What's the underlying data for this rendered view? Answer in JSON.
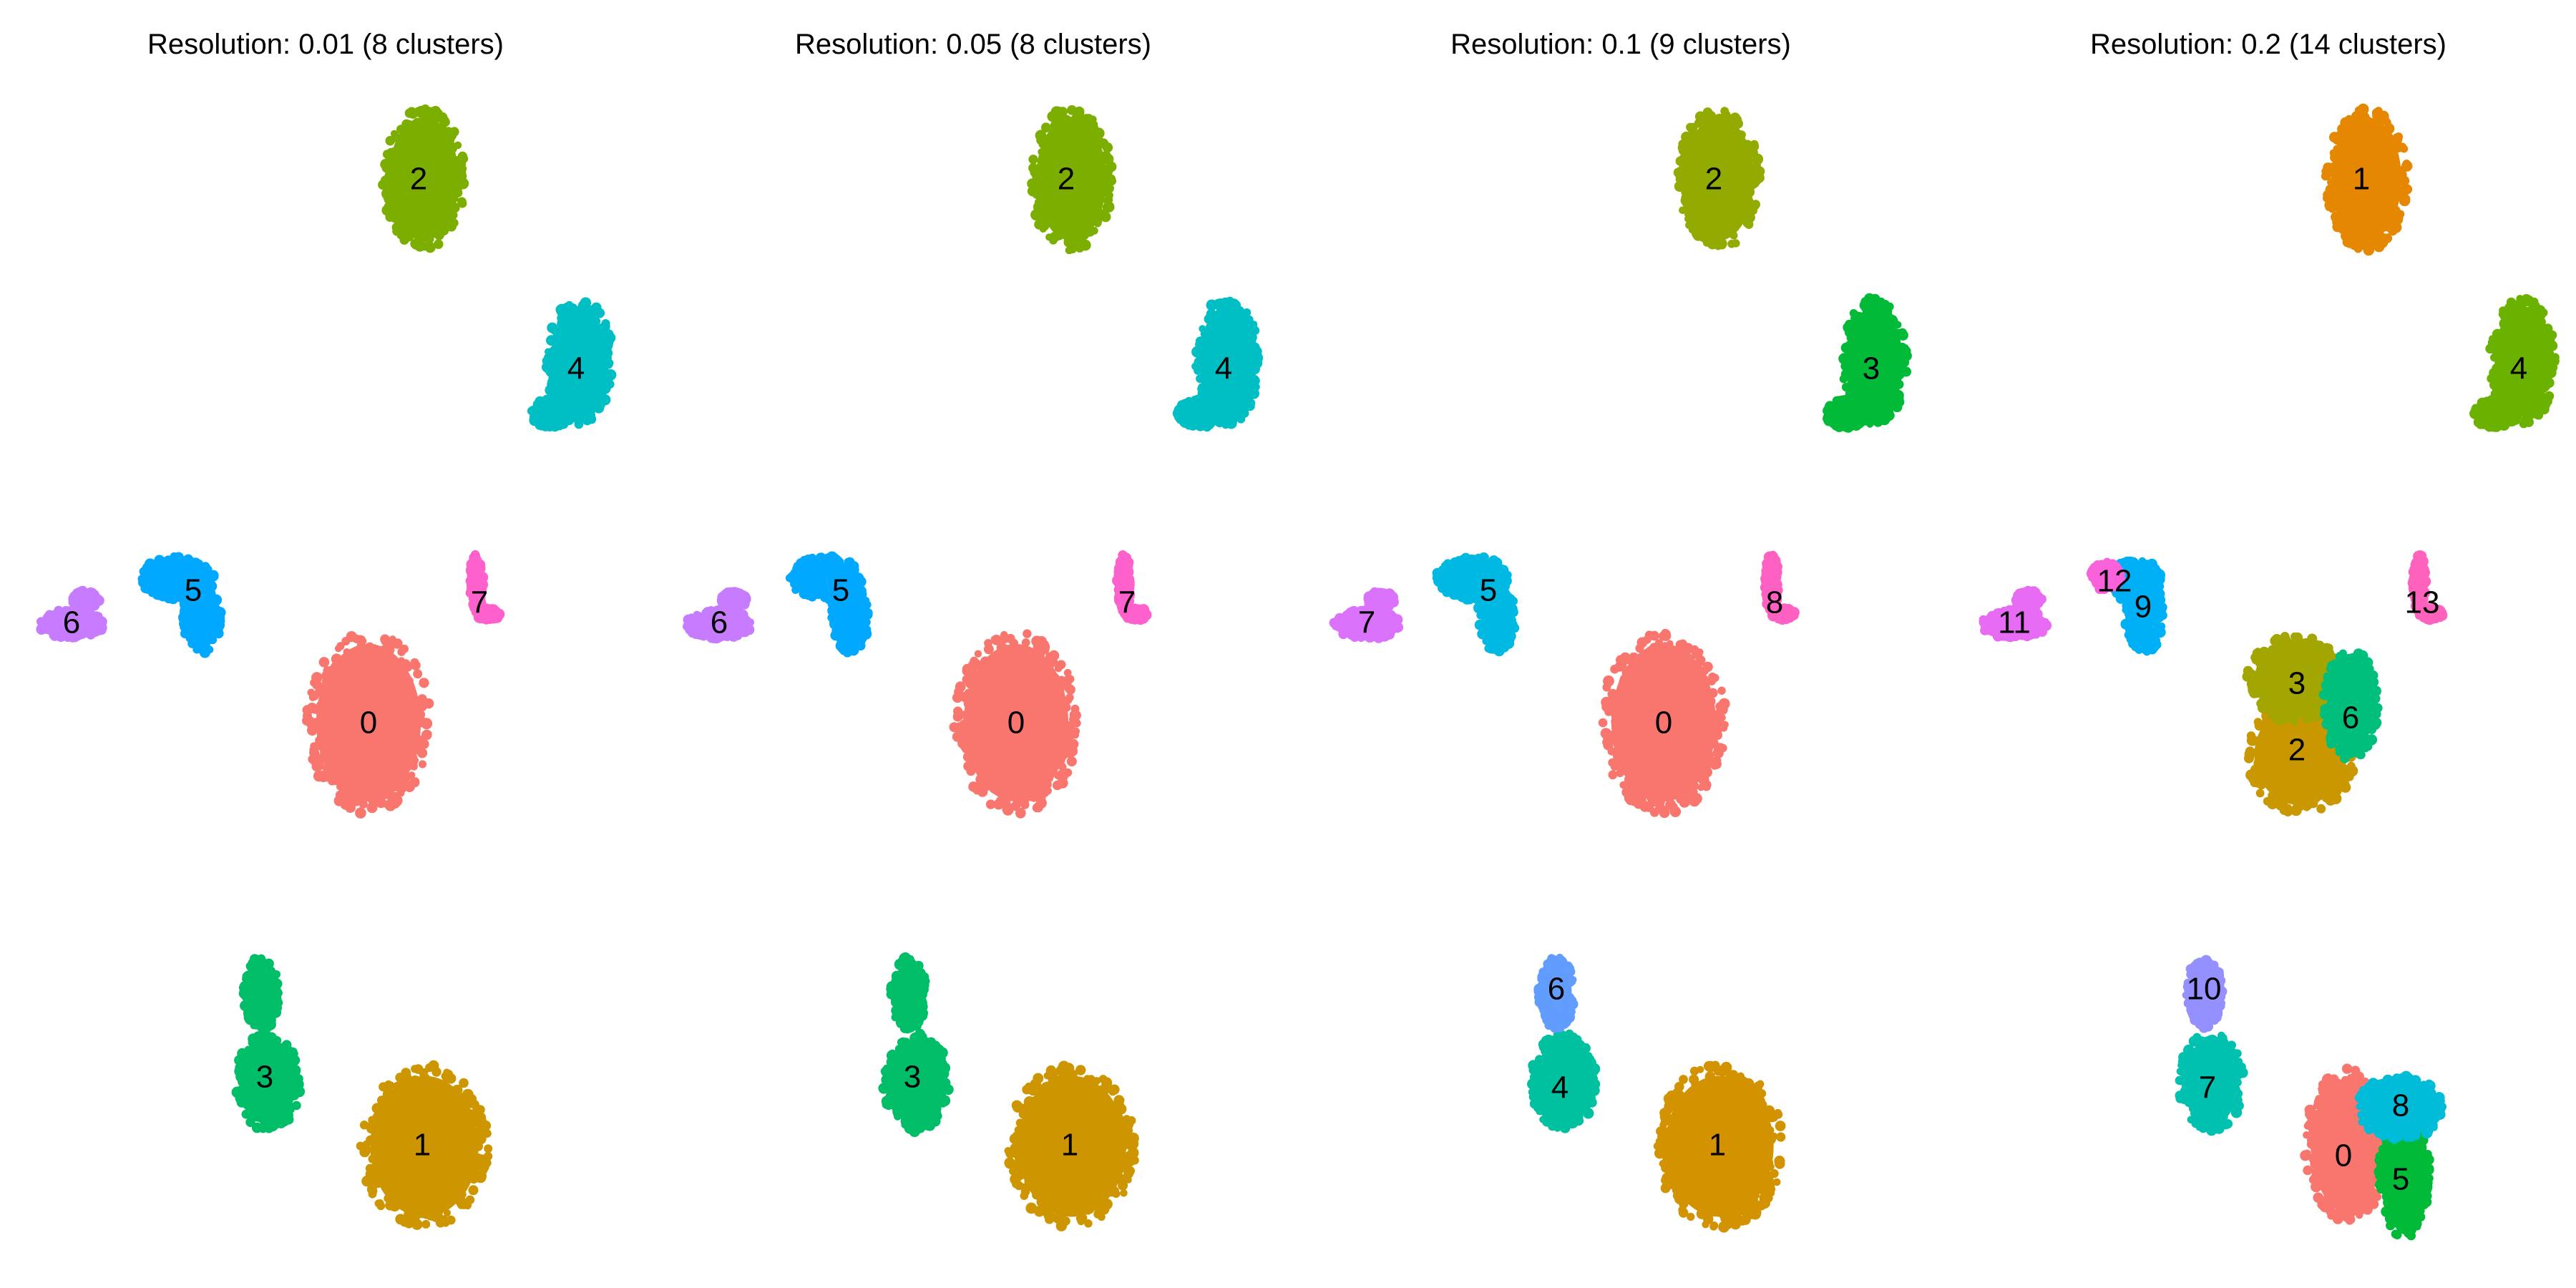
{
  "chart_data": [
    {
      "type": "scatter",
      "title": "Resolution: 0.01 (8 clusters)",
      "xlim": [
        0,
        900
      ],
      "ylim": [
        0,
        1800
      ],
      "grid": false,
      "legend": "none",
      "clusters": [
        {
          "label": "0",
          "color": "#F8766D",
          "x": 515,
          "y": 1010,
          "blobs": [
            [
              515,
              1010,
              85,
              125
            ]
          ]
        },
        {
          "label": "1",
          "color": "#CD9600",
          "x": 590,
          "y": 1600,
          "blobs": [
            [
              593,
              1602,
              88,
              112
            ]
          ]
        },
        {
          "label": "2",
          "color": "#7CAE00",
          "x": 585,
          "y": 250,
          "blobs": [
            [
              592,
              250,
              57,
              98
            ]
          ]
        },
        {
          "label": "3",
          "color": "#00BE67",
          "x": 370,
          "y": 1505,
          "blobs": [
            [
              365,
              1388,
              25,
              50
            ],
            [
              375,
              1512,
              45,
              68
            ]
          ]
        },
        {
          "label": "4",
          "color": "#00BFC4",
          "x": 805,
          "y": 515,
          "blobs": [
            [
              810,
              505,
              45,
              88
            ],
            [
              770,
              578,
              28,
              20
            ]
          ]
        },
        {
          "label": "5",
          "color": "#00A9FF",
          "x": 270,
          "y": 825,
          "blobs": [
            [
              248,
              808,
              50,
              30
            ],
            [
              282,
              862,
              26,
              50
            ]
          ]
        },
        {
          "label": "6",
          "color": "#C77CFF",
          "x": 100,
          "y": 870,
          "blobs": [
            [
              100,
              872,
              45,
              20
            ],
            [
              120,
              838,
              18,
              12
            ]
          ]
        },
        {
          "label": "7",
          "color": "#FF61CC",
          "x": 670,
          "y": 842,
          "blobs": [
            [
              666,
              815,
              9,
              40
            ],
            [
              682,
              858,
              16,
              8
            ]
          ]
        }
      ]
    },
    {
      "type": "scatter",
      "title": "Resolution: 0.05 (8 clusters)",
      "xlim": [
        0,
        900
      ],
      "ylim": [
        0,
        1800
      ],
      "grid": false,
      "legend": "none",
      "clusters": [
        {
          "label": "0",
          "color": "#F8766D",
          "x": 515,
          "y": 1010,
          "blobs": [
            [
              515,
              1010,
              85,
              125
            ]
          ]
        },
        {
          "label": "1",
          "color": "#CD9600",
          "x": 590,
          "y": 1600,
          "blobs": [
            [
              593,
              1602,
              88,
              112
            ]
          ]
        },
        {
          "label": "2",
          "color": "#7CAE00",
          "x": 585,
          "y": 250,
          "blobs": [
            [
              592,
              250,
              57,
              98
            ]
          ]
        },
        {
          "label": "3",
          "color": "#00BE67",
          "x": 370,
          "y": 1505,
          "blobs": [
            [
              365,
              1388,
              25,
              50
            ],
            [
              375,
              1512,
              45,
              68
            ]
          ]
        },
        {
          "label": "4",
          "color": "#00BFC4",
          "x": 805,
          "y": 515,
          "blobs": [
            [
              810,
              505,
              45,
              88
            ],
            [
              770,
              578,
              28,
              20
            ]
          ]
        },
        {
          "label": "5",
          "color": "#00A9FF",
          "x": 270,
          "y": 825,
          "blobs": [
            [
              248,
              808,
              50,
              30
            ],
            [
              282,
              862,
              26,
              50
            ]
          ]
        },
        {
          "label": "6",
          "color": "#C77CFF",
          "x": 100,
          "y": 870,
          "blobs": [
            [
              100,
              872,
              45,
              20
            ],
            [
              120,
              838,
              18,
              12
            ]
          ]
        },
        {
          "label": "7",
          "color": "#FF61CC",
          "x": 670,
          "y": 842,
          "blobs": [
            [
              666,
              815,
              9,
              40
            ],
            [
              682,
              858,
              16,
              8
            ]
          ]
        }
      ]
    },
    {
      "type": "scatter",
      "title": "Resolution: 0.1 (9 clusters)",
      "xlim": [
        0,
        900
      ],
      "ylim": [
        0,
        1800
      ],
      "grid": false,
      "legend": "none",
      "clusters": [
        {
          "label": "0",
          "color": "#F8766D",
          "x": 515,
          "y": 1010,
          "blobs": [
            [
              515,
              1010,
              85,
              125
            ]
          ]
        },
        {
          "label": "1",
          "color": "#D39200",
          "x": 590,
          "y": 1600,
          "blobs": [
            [
              593,
              1602,
              88,
              112
            ]
          ]
        },
        {
          "label": "2",
          "color": "#93AA00",
          "x": 585,
          "y": 250,
          "blobs": [
            [
              592,
              250,
              57,
              98
            ]
          ]
        },
        {
          "label": "3",
          "color": "#00BA38",
          "x": 805,
          "y": 515,
          "blobs": [
            [
              810,
              505,
              45,
              88
            ],
            [
              770,
              578,
              28,
              20
            ]
          ]
        },
        {
          "label": "4",
          "color": "#00C19F",
          "x": 370,
          "y": 1520,
          "blobs": [
            [
              375,
              1512,
              45,
              68
            ]
          ]
        },
        {
          "label": "5",
          "color": "#00B9E3",
          "x": 270,
          "y": 825,
          "blobs": [
            [
              248,
              808,
              50,
              30
            ],
            [
              282,
              862,
              26,
              50
            ]
          ]
        },
        {
          "label": "6",
          "color": "#619CFF",
          "x": 365,
          "y": 1382,
          "blobs": [
            [
              365,
              1388,
              25,
              50
            ]
          ]
        },
        {
          "label": "7",
          "color": "#DB72FB",
          "x": 100,
          "y": 870,
          "blobs": [
            [
              100,
              872,
              45,
              20
            ],
            [
              120,
              838,
              18,
              12
            ]
          ]
        },
        {
          "label": "8",
          "color": "#FF61C3",
          "x": 670,
          "y": 842,
          "blobs": [
            [
              666,
              815,
              9,
              40
            ],
            [
              682,
              858,
              16,
              8
            ]
          ]
        }
      ]
    },
    {
      "type": "scatter",
      "title": "Resolution: 0.2 (14 clusters)",
      "xlim": [
        0,
        900
      ],
      "ylim": [
        0,
        1800
      ],
      "grid": false,
      "legend": "none",
      "clusters": [
        {
          "label": "0",
          "color": "#F8766D",
          "x": 560,
          "y": 1615,
          "blobs": [
            [
              565,
              1600,
              58,
              105
            ]
          ]
        },
        {
          "label": "1",
          "color": "#E58700",
          "x": 585,
          "y": 250,
          "blobs": [
            [
              592,
              250,
              57,
              98
            ]
          ]
        },
        {
          "label": "2",
          "color": "#C99800",
          "x": 495,
          "y": 1048,
          "blobs": [
            [
              500,
              1055,
              75,
              80
            ]
          ]
        },
        {
          "label": "3",
          "color": "#A3A500",
          "x": 495,
          "y": 955,
          "blobs": [
            [
              492,
              948,
              65,
              60
            ]
          ]
        },
        {
          "label": "4",
          "color": "#6BB100",
          "x": 805,
          "y": 515,
          "blobs": [
            [
              810,
              505,
              45,
              88
            ],
            [
              770,
              578,
              28,
              20
            ]
          ]
        },
        {
          "label": "5",
          "color": "#00BA38",
          "x": 640,
          "y": 1648,
          "blobs": [
            [
              645,
              1640,
              35,
              90
            ]
          ]
        },
        {
          "label": "6",
          "color": "#00BF7D",
          "x": 570,
          "y": 1003,
          "blobs": [
            [
              570,
              985,
              38,
              75
            ]
          ]
        },
        {
          "label": "7",
          "color": "#00C0AF",
          "x": 370,
          "y": 1520,
          "blobs": [
            [
              375,
              1512,
              45,
              68
            ]
          ]
        },
        {
          "label": "8",
          "color": "#00BCD8",
          "x": 640,
          "y": 1545,
          "blobs": [
            [
              640,
              1548,
              60,
              45
            ]
          ]
        },
        {
          "label": "9",
          "color": "#00B0F6",
          "x": 280,
          "y": 848,
          "blobs": [
            [
              270,
              812,
              35,
              30
            ],
            [
              282,
              862,
              26,
              50
            ]
          ]
        },
        {
          "label": "10",
          "color": "#9590FF",
          "x": 365,
          "y": 1382,
          "blobs": [
            [
              365,
              1388,
              25,
              50
            ]
          ]
        },
        {
          "label": "11",
          "color": "#E76BF3",
          "x": 100,
          "y": 870,
          "blobs": [
            [
              100,
              872,
              45,
              20
            ],
            [
              120,
              838,
              18,
              12
            ]
          ]
        },
        {
          "label": "12",
          "color": "#FA62DB",
          "x": 240,
          "y": 812,
          "blobs": [
            [
              228,
              805,
              20,
              20
            ]
          ]
        },
        {
          "label": "13",
          "color": "#FF62BC",
          "x": 670,
          "y": 842,
          "blobs": [
            [
              666,
              815,
              9,
              40
            ],
            [
              682,
              858,
              16,
              8
            ]
          ]
        }
      ]
    }
  ]
}
